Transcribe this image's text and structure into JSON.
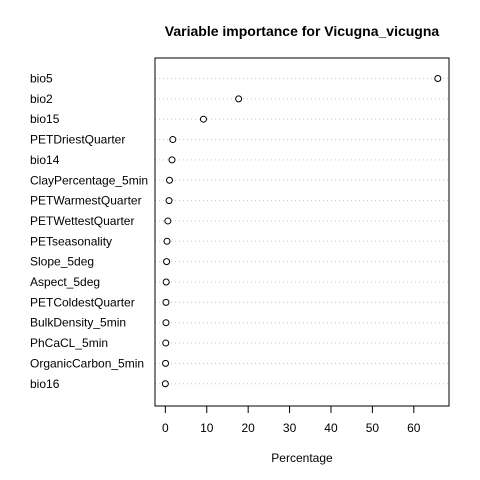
{
  "chart_data": {
    "type": "scatter",
    "title": "Variable importance for Vicugna_vicugna",
    "xlabel": "Percentage",
    "ylabel": "",
    "xlim": [
      -2.5,
      68.5
    ],
    "x_ticks": [
      "0",
      "10",
      "20",
      "30",
      "40",
      "50",
      "60"
    ],
    "grid": "horizontal dotted",
    "categories": [
      "bio5",
      "bio2",
      "bio15",
      "PETDriestQuarter",
      "bio14",
      "ClayPercentage_5min",
      "PETWarmestQuarter",
      "PETWettestQuarter",
      "PETseasonality",
      "Slope_5deg",
      "Aspect_5deg",
      "PETColdestQuarter",
      "BulkDensity_5min",
      "PhCaCL_5min",
      "OrganicCarbon_5min",
      "bio16"
    ],
    "values": [
      65.8,
      17.7,
      9.2,
      1.8,
      1.6,
      1.0,
      0.9,
      0.6,
      0.4,
      0.3,
      0.2,
      0.15,
      0.15,
      0.1,
      0.05,
      0.0
    ]
  }
}
